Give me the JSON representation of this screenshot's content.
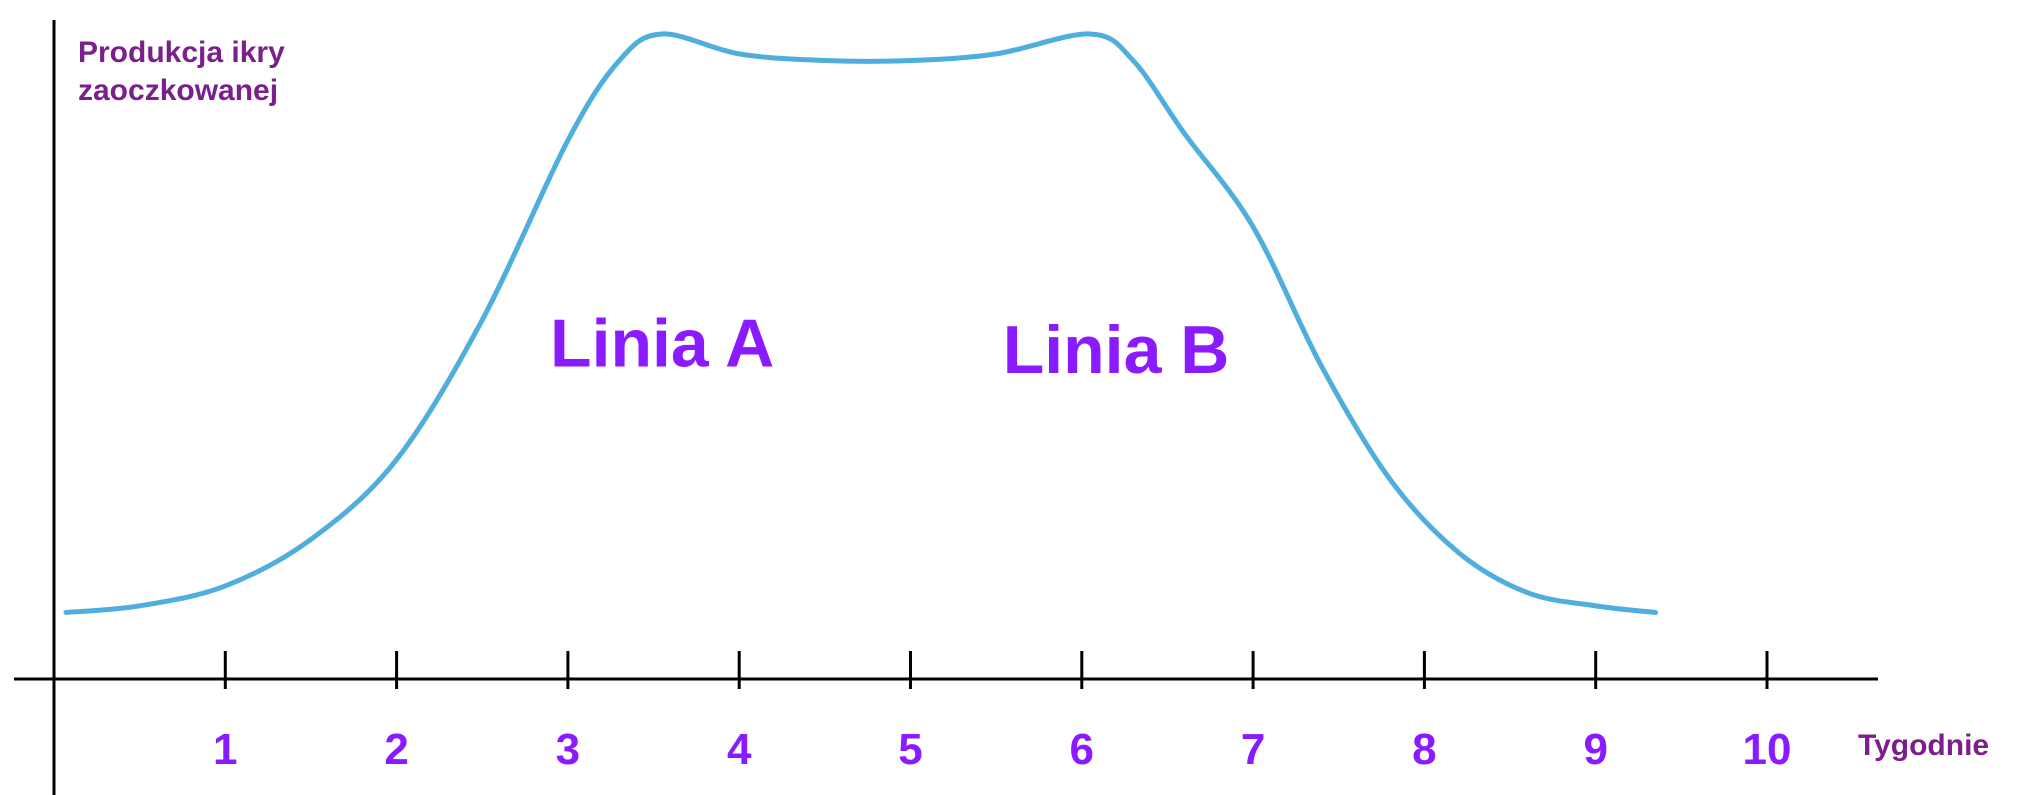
{
  "chart_data": {
    "type": "line",
    "title": "",
    "ylabel_lines": [
      "Produkcja ikry",
      "zaoczkowanej"
    ],
    "xlabel": "Tygodnie",
    "x_ticks": [
      1,
      2,
      3,
      4,
      5,
      6,
      7,
      8,
      9,
      10
    ],
    "x_tick_labels": [
      "1",
      "2",
      "3",
      "4",
      "5",
      "6",
      "7",
      "8",
      "9",
      "10"
    ],
    "xlim": [
      0,
      10.7
    ],
    "ylim": [
      0,
      100
    ],
    "grid": false,
    "series": [
      {
        "color": "#4faedb",
        "points": [
          [
            0.07,
            10
          ],
          [
            0.5,
            11
          ],
          [
            1.0,
            14
          ],
          [
            1.5,
            21
          ],
          [
            2.0,
            33
          ],
          [
            2.5,
            54
          ],
          [
            3.0,
            81
          ],
          [
            3.3,
            93
          ],
          [
            3.55,
            97
          ],
          [
            4.0,
            94
          ],
          [
            4.5,
            93
          ],
          [
            5.0,
            93
          ],
          [
            5.5,
            94
          ],
          [
            6.05,
            97
          ],
          [
            6.3,
            93
          ],
          [
            6.6,
            82
          ],
          [
            7.0,
            68
          ],
          [
            7.4,
            47
          ],
          [
            7.8,
            30
          ],
          [
            8.2,
            19
          ],
          [
            8.6,
            13
          ],
          [
            9.0,
            11
          ],
          [
            9.35,
            10
          ]
        ]
      }
    ],
    "annotations": [
      {
        "text": "Linia A",
        "x": 3.55,
        "y": 47
      },
      {
        "text": "Linia B",
        "x": 6.2,
        "y": 46
      }
    ],
    "colors": {
      "axis": "#000000",
      "tick_labels": "#8a1aff",
      "axis_titles": "#7a1f8c",
      "annotations": "#8a1aff",
      "line": "#4faedb"
    }
  }
}
